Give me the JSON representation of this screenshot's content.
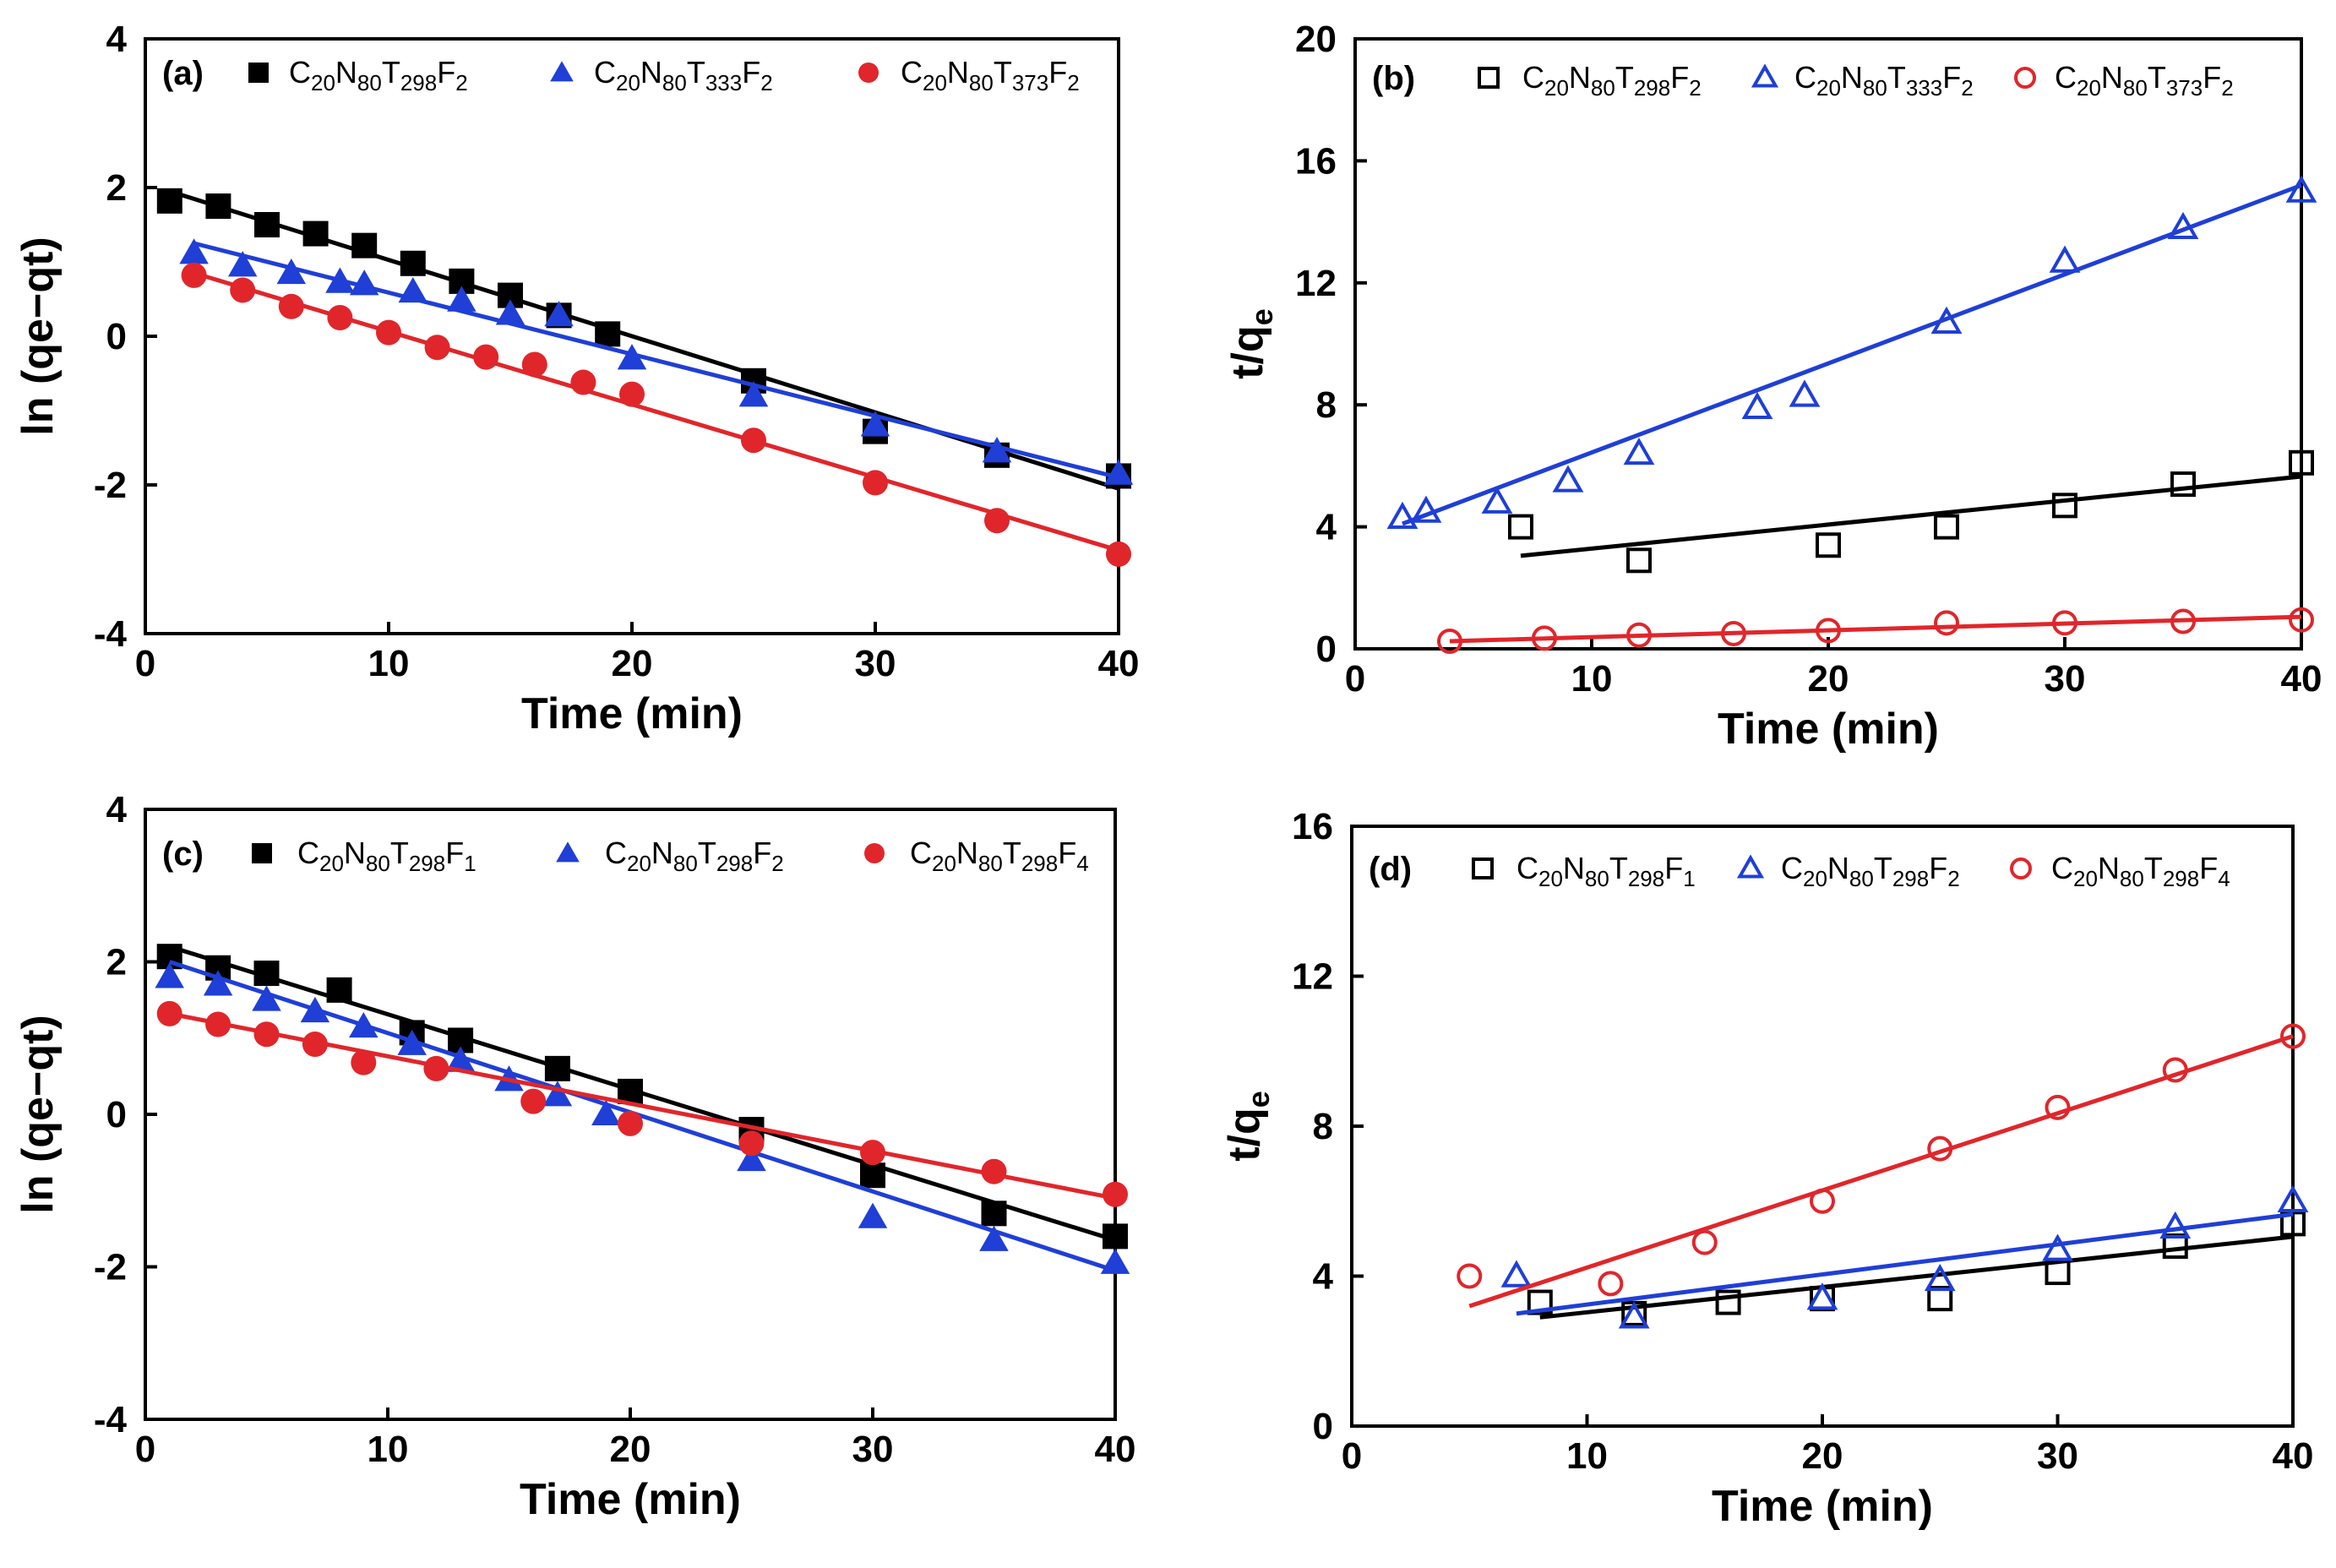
{
  "figure": {
    "colors": {
      "black": "#000000",
      "blue": "#1f3fd6",
      "red": "#e0262b"
    }
  },
  "chart_data": [
    {
      "id": "a",
      "type": "scatter",
      "panel_label": "(a)",
      "xlabel": "Time (min)",
      "ylabel": "ln (qe−qt)",
      "xlim": [
        0,
        40
      ],
      "ylim": [
        -4,
        4
      ],
      "xticks": [
        "0",
        "10",
        "20",
        "30",
        "40"
      ],
      "yticks": [
        "-4",
        "-2",
        "0",
        "2",
        "4"
      ],
      "marker_fill": "filled",
      "series": [
        {
          "name": "C20N80T298F2",
          "legend": {
            "base": "C",
            "parts": [
              [
                "20",
                "N"
              ],
              [
                "80",
                "T"
              ],
              [
                "298",
                "F"
              ],
              [
                "2",
                ""
              ]
            ]
          },
          "color": "#000000",
          "marker": "square",
          "x": [
            1,
            3,
            5,
            7,
            9,
            11,
            13,
            15,
            17,
            19,
            25,
            30,
            35,
            40
          ],
          "y": [
            1.82,
            1.75,
            1.5,
            1.38,
            1.22,
            0.98,
            0.74,
            0.55,
            0.28,
            0.03,
            -0.6,
            -1.28,
            -1.6,
            -1.88
          ],
          "fit": [
            [
              1,
              1.95
            ],
            [
              40,
              -2.05
            ]
          ]
        },
        {
          "name": "C20N80T333F2",
          "legend": {
            "base": "C",
            "parts": [
              [
                "20",
                "N"
              ],
              [
                "80",
                "T"
              ],
              [
                "333",
                "F"
              ],
              [
                "2",
                ""
              ]
            ]
          },
          "color": "#1f3fd6",
          "marker": "triangle",
          "x": [
            2,
            4,
            6,
            8,
            9,
            11,
            13,
            15,
            17,
            20,
            25,
            30,
            35,
            40
          ],
          "y": [
            1.12,
            0.95,
            0.85,
            0.73,
            0.7,
            0.6,
            0.48,
            0.3,
            0.28,
            -0.3,
            -0.8,
            -1.2,
            -1.55,
            -1.85
          ],
          "fit": [
            [
              2,
              1.25
            ],
            [
              40,
              -1.9
            ]
          ]
        },
        {
          "name": "C20N80T373F2",
          "legend": {
            "base": "C",
            "parts": [
              [
                "20",
                "N"
              ],
              [
                "80",
                "T"
              ],
              [
                "373",
                "F"
              ],
              [
                "2",
                ""
              ]
            ]
          },
          "color": "#e0262b",
          "marker": "circle",
          "x": [
            2,
            4,
            6,
            8,
            10,
            12,
            14,
            16,
            18,
            20,
            25,
            30,
            35,
            40
          ],
          "y": [
            0.82,
            0.62,
            0.4,
            0.25,
            0.05,
            -0.15,
            -0.28,
            -0.38,
            -0.62,
            -0.78,
            -1.4,
            -1.97,
            -2.48,
            -2.93
          ],
          "fit": [
            [
              2,
              0.85
            ],
            [
              40,
              -2.88
            ]
          ]
        }
      ]
    },
    {
      "id": "b",
      "type": "scatter",
      "panel_label": "(b)",
      "xlabel": "Time (min)",
      "ylabel": "t/qe",
      "xlim": [
        0,
        40
      ],
      "ylim": [
        0,
        20
      ],
      "xticks": [
        "0",
        "10",
        "20",
        "30",
        "40"
      ],
      "yticks": [
        "0",
        "4",
        "8",
        "12",
        "16",
        "20"
      ],
      "marker_fill": "open",
      "series": [
        {
          "name": "C20N80T298F2",
          "legend": {
            "base": "C",
            "parts": [
              [
                "20",
                "N"
              ],
              [
                "80",
                "T"
              ],
              [
                "298",
                "F"
              ],
              [
                "2",
                ""
              ]
            ]
          },
          "color": "#000000",
          "marker": "square",
          "x": [
            7,
            12,
            20,
            25,
            30,
            35,
            40
          ],
          "y": [
            4.0,
            2.9,
            3.4,
            4.0,
            4.7,
            5.4,
            6.1
          ],
          "fit": [
            [
              7,
              3.05
            ],
            [
              40,
              5.65
            ]
          ]
        },
        {
          "name": "C20N80T333F2",
          "legend": {
            "base": "C",
            "parts": [
              [
                "20",
                "N"
              ],
              [
                "80",
                "T"
              ],
              [
                "333",
                "F"
              ],
              [
                "2",
                ""
              ]
            ]
          },
          "color": "#1f3fd6",
          "marker": "triangle",
          "x": [
            2,
            3,
            6,
            9,
            12,
            17,
            19,
            25,
            30,
            35,
            40
          ],
          "y": [
            4.3,
            4.5,
            4.8,
            5.5,
            6.4,
            7.9,
            8.3,
            10.7,
            12.7,
            13.8,
            15.0
          ],
          "fit": [
            [
              2,
              4.1
            ],
            [
              40,
              15.2
            ]
          ]
        },
        {
          "name": "C20N80T373F2",
          "legend": {
            "base": "C",
            "parts": [
              [
                "20",
                "N"
              ],
              [
                "80",
                "T"
              ],
              [
                "373",
                "F"
              ],
              [
                "2",
                ""
              ]
            ]
          },
          "color": "#e0262b",
          "marker": "circle",
          "x": [
            4,
            8,
            12,
            16,
            20,
            25,
            30,
            35,
            40
          ],
          "y": [
            0.25,
            0.35,
            0.45,
            0.5,
            0.6,
            0.85,
            0.85,
            0.9,
            0.95
          ],
          "fit": [
            [
              4,
              0.25
            ],
            [
              40,
              1.05
            ]
          ]
        }
      ]
    },
    {
      "id": "c",
      "type": "scatter",
      "panel_label": "(c)",
      "xlabel": "Time (min)",
      "ylabel": "ln (qe−qt)",
      "xlim": [
        0,
        40
      ],
      "ylim": [
        -4,
        4
      ],
      "xticks": [
        "0",
        "10",
        "20",
        "30",
        "40"
      ],
      "yticks": [
        "-4",
        "-2",
        "0",
        "2",
        "4"
      ],
      "marker_fill": "filled",
      "series": [
        {
          "name": "C20N80T298F1",
          "legend": {
            "base": "C",
            "parts": [
              [
                "20",
                "N"
              ],
              [
                "80",
                "T"
              ],
              [
                "298",
                "F"
              ],
              [
                "1",
                ""
              ]
            ]
          },
          "color": "#000000",
          "marker": "square",
          "x": [
            1,
            3,
            5,
            8,
            11,
            13,
            17,
            20,
            25,
            30,
            35,
            40
          ],
          "y": [
            2.07,
            1.92,
            1.85,
            1.63,
            1.07,
            0.97,
            0.6,
            0.3,
            -0.2,
            -0.8,
            -1.3,
            -1.6
          ],
          "fit": [
            [
              1,
              2.2
            ],
            [
              40,
              -1.65
            ]
          ]
        },
        {
          "name": "C20N80T298F2",
          "legend": {
            "base": "C",
            "parts": [
              [
                "20",
                "N"
              ],
              [
                "80",
                "T"
              ],
              [
                "298",
                "F"
              ],
              [
                "2",
                ""
              ]
            ]
          },
          "color": "#1f3fd6",
          "marker": "triangle",
          "x": [
            1,
            3,
            5,
            7,
            9,
            11,
            13,
            15,
            17,
            19,
            25,
            30,
            35,
            40
          ],
          "y": [
            1.8,
            1.7,
            1.5,
            1.35,
            1.15,
            0.92,
            0.7,
            0.45,
            0.25,
            0.0,
            -0.6,
            -1.35,
            -1.65,
            -1.95
          ],
          "fit": [
            [
              1,
              2.0
            ],
            [
              40,
              -2.05
            ]
          ]
        },
        {
          "name": "C20N80T298F4",
          "legend": {
            "base": "C",
            "parts": [
              [
                "20",
                "N"
              ],
              [
                "80",
                "T"
              ],
              [
                "298",
                "F"
              ],
              [
                "4",
                ""
              ]
            ]
          },
          "color": "#e0262b",
          "marker": "circle",
          "x": [
            1,
            3,
            5,
            7,
            9,
            12,
            16,
            20,
            25,
            30,
            35,
            40
          ],
          "y": [
            1.32,
            1.18,
            1.05,
            0.92,
            0.68,
            0.6,
            0.17,
            -0.12,
            -0.38,
            -0.5,
            -0.75,
            -1.05
          ],
          "fit": [
            [
              1,
              1.32
            ],
            [
              40,
              -1.1
            ]
          ]
        }
      ]
    },
    {
      "id": "d",
      "type": "scatter",
      "panel_label": "(d)",
      "xlabel": "Time (min)",
      "ylabel": "t/qe",
      "xlim": [
        0,
        40
      ],
      "ylim": [
        0,
        16
      ],
      "xticks": [
        "0",
        "10",
        "20",
        "30",
        "40"
      ],
      "yticks": [
        "0",
        "4",
        "8",
        "12",
        "16"
      ],
      "marker_fill": "open",
      "series": [
        {
          "name": "C20N80T298F1",
          "legend": {
            "base": "C",
            "parts": [
              [
                "20",
                "N"
              ],
              [
                "80",
                "T"
              ],
              [
                "298",
                "F"
              ],
              [
                "1",
                ""
              ]
            ]
          },
          "color": "#000000",
          "marker": "square",
          "x": [
            8,
            12,
            16,
            20,
            25,
            30,
            35,
            40
          ],
          "y": [
            3.3,
            3.0,
            3.3,
            3.4,
            3.4,
            4.1,
            4.8,
            5.4
          ],
          "fit": [
            [
              8,
              2.9
            ],
            [
              40,
              5.05
            ]
          ]
        },
        {
          "name": "C20N80T298F2",
          "legend": {
            "base": "C",
            "parts": [
              [
                "20",
                "N"
              ],
              [
                "80",
                "T"
              ],
              [
                "298",
                "F"
              ],
              [
                "2",
                ""
              ]
            ]
          },
          "color": "#1f3fd6",
          "marker": "triangle",
          "x": [
            7,
            12,
            20,
            25,
            30,
            35,
            40
          ],
          "y": [
            4.0,
            2.9,
            3.4,
            3.9,
            4.7,
            5.3,
            6.0
          ],
          "fit": [
            [
              7,
              3.0
            ],
            [
              40,
              5.65
            ]
          ]
        },
        {
          "name": "C20N80T298F4",
          "legend": {
            "base": "C",
            "parts": [
              [
                "20",
                "N"
              ],
              [
                "80",
                "T"
              ],
              [
                "298",
                "F"
              ],
              [
                "4",
                ""
              ]
            ]
          },
          "color": "#e0262b",
          "marker": "circle",
          "x": [
            5,
            11,
            15,
            20,
            25,
            30,
            35,
            40
          ],
          "y": [
            4.0,
            3.8,
            4.9,
            6.0,
            7.4,
            8.5,
            9.5,
            10.4
          ],
          "fit": [
            [
              5,
              3.2
            ],
            [
              40,
              10.4
            ]
          ]
        }
      ]
    }
  ]
}
